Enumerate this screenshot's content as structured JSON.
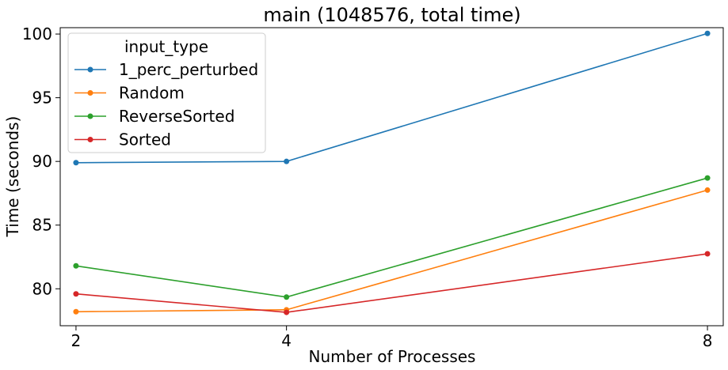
{
  "chart_data": {
    "type": "line",
    "title": "main (1048576, total time)",
    "xlabel": "Number of Processes",
    "ylabel": "Time (seconds)",
    "x": [
      2,
      4,
      8
    ],
    "xticks": [
      "2",
      "4",
      "8"
    ],
    "yticks": [
      80,
      85,
      90,
      95,
      100
    ],
    "xlim": [
      1.85,
      8.15
    ],
    "ylim": [
      77.1,
      100.5
    ],
    "grid": false,
    "legend": {
      "title": "input_type",
      "placement": "top-left"
    },
    "series": [
      {
        "name": "1_perc_perturbed",
        "color": "#1f77b4",
        "values": [
          89.9,
          90.0,
          100.05
        ]
      },
      {
        "name": "Random",
        "color": "#ff7f0e",
        "values": [
          78.2,
          78.35,
          87.75
        ]
      },
      {
        "name": "ReverseSorted",
        "color": "#2ca02c",
        "values": [
          81.8,
          79.35,
          88.7
        ]
      },
      {
        "name": "Sorted",
        "color": "#d62728",
        "values": [
          79.6,
          78.15,
          82.75
        ]
      }
    ]
  }
}
